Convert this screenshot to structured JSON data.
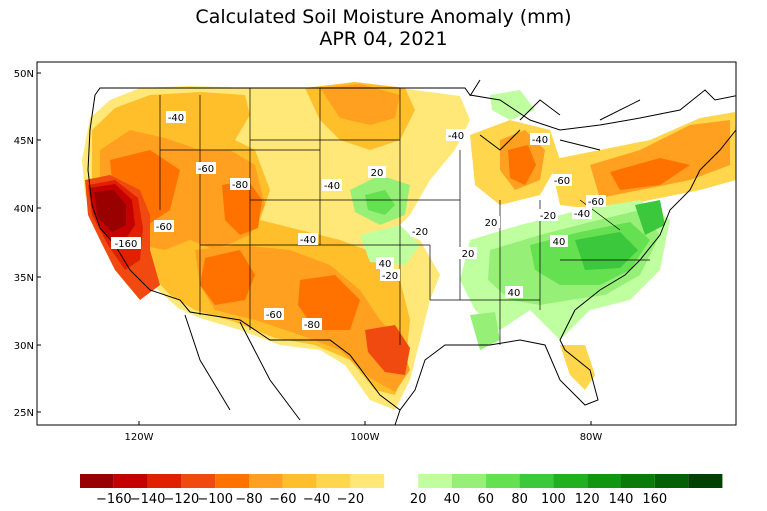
{
  "title": "Calculated Soil Moisture Anomaly (mm)",
  "subtitle": "APR 04, 2021",
  "lat_ticks": [
    "25N",
    "30N",
    "35N",
    "40N",
    "45N",
    "50N"
  ],
  "lon_ticks": [
    "120W",
    "100W",
    "80W"
  ],
  "legend": {
    "dry_colors": [
      "#990000",
      "#c40000",
      "#e02000",
      "#f04a10",
      "#ff7200",
      "#ffa020",
      "#ffbf2a",
      "#ffd64c",
      "#ffe878"
    ],
    "wet_colors": [
      "#c0ffa0",
      "#96f078",
      "#64e050",
      "#3cc83c",
      "#20b020",
      "#109610",
      "#0a7a0a",
      "#056005",
      "#004000"
    ],
    "labels": [
      "-160",
      "-140",
      "-120",
      "-100",
      "-80",
      "-60",
      "-40",
      "-20",
      "20",
      "40",
      "60",
      "80",
      "100",
      "120",
      "140",
      "160"
    ]
  },
  "contour_labels": [
    "-40",
    "-60",
    "-80",
    "-40",
    "-20",
    "20",
    "-20",
    "40",
    "-20",
    "-40",
    "-40",
    "-60",
    "-60",
    "-40",
    "-20",
    "20",
    "40",
    "20",
    "40",
    "-160",
    "-60",
    "-40",
    "-60",
    "-80"
  ]
}
